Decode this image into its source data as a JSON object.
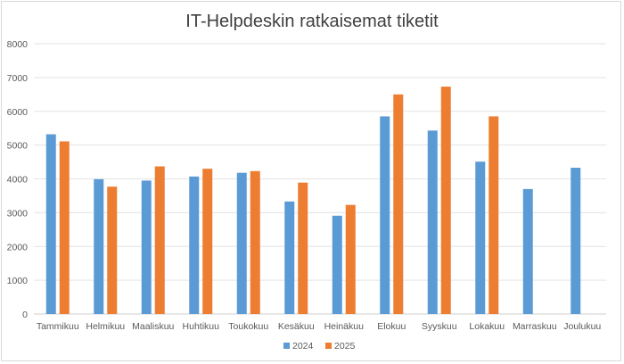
{
  "chart_data": {
    "type": "bar",
    "title": "IT-Helpdeskin ratkaisemat tiketit",
    "xlabel": "",
    "ylabel": "",
    "ylim": [
      0,
      8000
    ],
    "yticks": [
      0,
      1000,
      2000,
      3000,
      4000,
      5000,
      6000,
      7000,
      8000
    ],
    "grid": true,
    "legend_position": "bottom",
    "categories": [
      "Tammikuu",
      "Helmikuu",
      "Maaliskuu",
      "Huhtikuu",
      "Toukokuu",
      "Kesäkuu",
      "Heinäkuu",
      "Elokuu",
      "Syyskuu",
      "Lokakuu",
      "Marraskuu",
      "Joulukuu"
    ],
    "series": [
      {
        "name": "2024",
        "color": "#5b9bd5",
        "values": [
          5320,
          3990,
          3950,
          4070,
          4180,
          3330,
          2910,
          5850,
          5430,
          4510,
          3700,
          4330
        ]
      },
      {
        "name": "2025",
        "color": "#ed7d31",
        "values": [
          5110,
          3770,
          4370,
          4300,
          4230,
          3890,
          3230,
          6500,
          6730,
          5850,
          null,
          null
        ]
      }
    ]
  }
}
